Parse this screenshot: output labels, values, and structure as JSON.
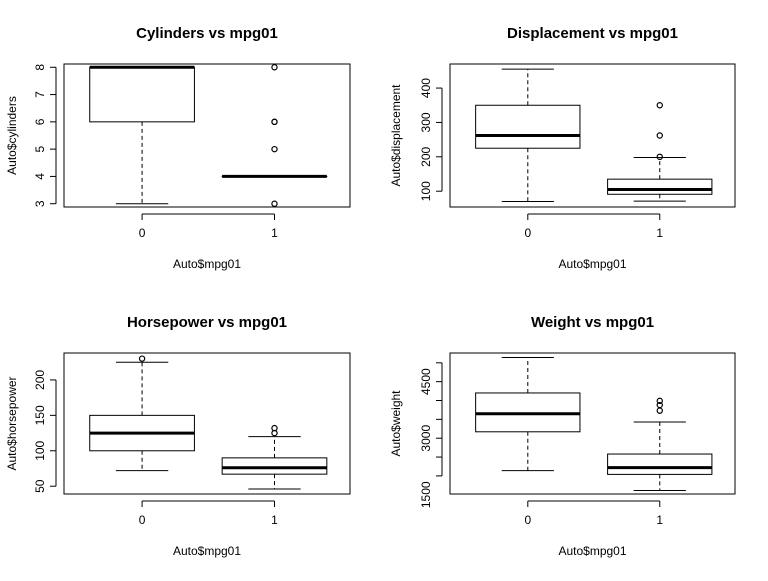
{
  "chart_data": [
    {
      "type": "boxplot",
      "title": "Cylinders vs mpg01",
      "xlabel": "Auto$mpg01",
      "ylabel": "Auto$cylinders",
      "categories": [
        "0",
        "1"
      ],
      "ylim": [
        2.88,
        8.12
      ],
      "yticks": [
        3,
        4,
        5,
        6,
        7,
        8
      ],
      "boxes": [
        {
          "group": "0",
          "whisker_low": 3,
          "q1": 6,
          "median": 8,
          "q3": 8,
          "whisker_high": 8,
          "outliers": []
        },
        {
          "group": "1",
          "whisker_low": 4,
          "q1": 4,
          "median": 4,
          "q3": 4,
          "whisker_high": 4,
          "outliers": [
            8,
            6,
            6,
            5,
            3
          ]
        }
      ]
    },
    {
      "type": "boxplot",
      "title": "Displacement vs mpg01",
      "xlabel": "Auto$mpg01",
      "ylabel": "Auto$displacement",
      "categories": [
        "0",
        "1"
      ],
      "ylim": [
        54,
        470
      ],
      "yticks": [
        100,
        200,
        300,
        400
      ],
      "boxes": [
        {
          "group": "0",
          "whisker_low": 70,
          "q1": 225,
          "median": 262,
          "q3": 350,
          "whisker_high": 455,
          "outliers": []
        },
        {
          "group": "1",
          "whisker_low": 71,
          "q1": 91,
          "median": 105,
          "q3": 135,
          "whisker_high": 198,
          "outliers": [
            200,
            262,
            350
          ]
        }
      ]
    },
    {
      "type": "boxplot",
      "title": "Horsepower vs mpg01",
      "xlabel": "Auto$mpg01",
      "ylabel": "Auto$horsepower",
      "categories": [
        "0",
        "1"
      ],
      "ylim": [
        39,
        238
      ],
      "yticks": [
        50,
        100,
        150,
        200
      ],
      "boxes": [
        {
          "group": "0",
          "whisker_low": 72,
          "q1": 100,
          "median": 125,
          "q3": 150,
          "whisker_high": 225,
          "outliers": [
            230
          ]
        },
        {
          "group": "1",
          "whisker_low": 46,
          "q1": 67,
          "median": 76,
          "q3": 90,
          "whisker_high": 120,
          "outliers": [
            125,
            132
          ]
        }
      ]
    },
    {
      "type": "boxplot",
      "title": "Weight vs mpg01",
      "xlabel": "Auto$mpg01",
      "ylabel": "Auto$weight",
      "categories": [
        "0",
        "1"
      ],
      "ylim": [
        1520,
        5260
      ],
      "yticks": [
        1500,
        3000,
        4500
      ],
      "yticks_minor": [
        2000,
        2500,
        3500,
        4000,
        5000
      ],
      "boxes": [
        {
          "group": "0",
          "whisker_low": 2140,
          "q1": 3170,
          "median": 3650,
          "q3": 4200,
          "whisker_high": 5140,
          "outliers": []
        },
        {
          "group": "1",
          "whisker_low": 1613,
          "q1": 2040,
          "median": 2220,
          "q3": 2580,
          "whisker_high": 3430,
          "outliers": [
            3730,
            3880,
            3990
          ]
        }
      ]
    }
  ]
}
